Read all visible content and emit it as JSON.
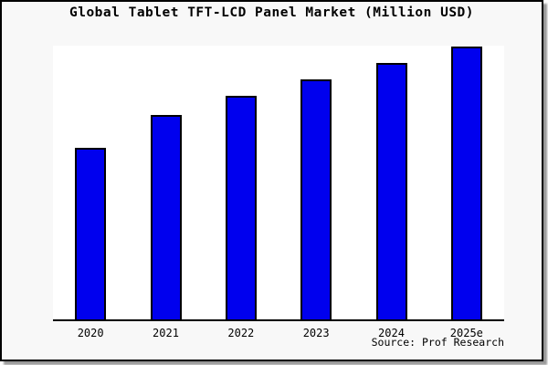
{
  "title": "Global Tablet TFT-LCD Panel Market (Million USD)",
  "source": "Source: Prof Research",
  "colors": {
    "figure_background": "#f8f8f8",
    "plot_background": "#ffffff",
    "bar_fill": "#0000ee",
    "bar_edge": "#000000",
    "axis_line": "#000000",
    "frame_border": "#000000"
  },
  "chart_data": {
    "type": "bar",
    "title": "Global Tablet TFT-LCD Panel Market (Million USD)",
    "categories": [
      "2020",
      "2021",
      "2022",
      "2023",
      "2024",
      "2025e"
    ],
    "values": [
      63,
      75,
      82,
      88,
      94,
      100
    ],
    "value_scale_note": "no y-axis ticks or labels shown; values estimated as percent of the tallest (2025e) bar",
    "xlabel": "",
    "ylabel": "",
    "ylim": [
      0,
      100
    ],
    "grid": false,
    "legend": false,
    "y_axis_visible": false,
    "bar_color": "#0000ee",
    "bar_edge_color": "#000000",
    "source": "Source: Prof Research"
  }
}
